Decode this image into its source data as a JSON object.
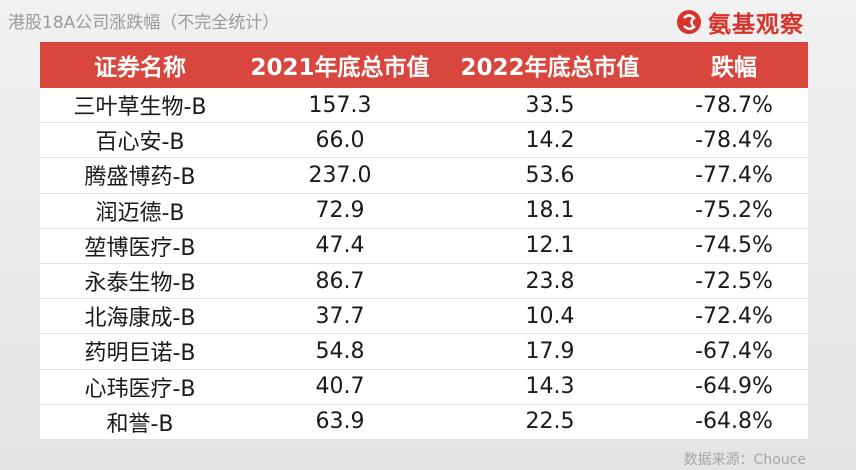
{
  "header": {
    "title": "港股18A公司涨跌幅（不完全统计）",
    "logo": "氨基观察"
  },
  "table": {
    "columns": [
      "证券名称",
      "2021年底总市值",
      "2022年底总市值",
      "跌幅"
    ],
    "rows": [
      [
        "三叶草生物-B",
        "157.3",
        "33.5",
        "-78.7%"
      ],
      [
        "百心安-B",
        "66.0",
        "14.2",
        "-78.4%"
      ],
      [
        "腾盛博药-B",
        "237.0",
        "53.6",
        "-77.4%"
      ],
      [
        "润迈德-B",
        "72.9",
        "18.1",
        "-75.2%"
      ],
      [
        "堃博医疗-B",
        "47.4",
        "12.1",
        "-74.5%"
      ],
      [
        "永泰生物-B",
        "86.7",
        "23.8",
        "-72.5%"
      ],
      [
        "北海康成-B",
        "37.7",
        "10.4",
        "-72.4%"
      ],
      [
        "药明巨诺-B",
        "54.8",
        "17.9",
        "-67.4%"
      ],
      [
        "心玮医疗-B",
        "40.7",
        "14.3",
        "-64.9%"
      ],
      [
        "和誉-B",
        "63.9",
        "22.5",
        "-64.8%"
      ]
    ]
  },
  "footer": {
    "source": "数据来源：Chouce"
  }
}
